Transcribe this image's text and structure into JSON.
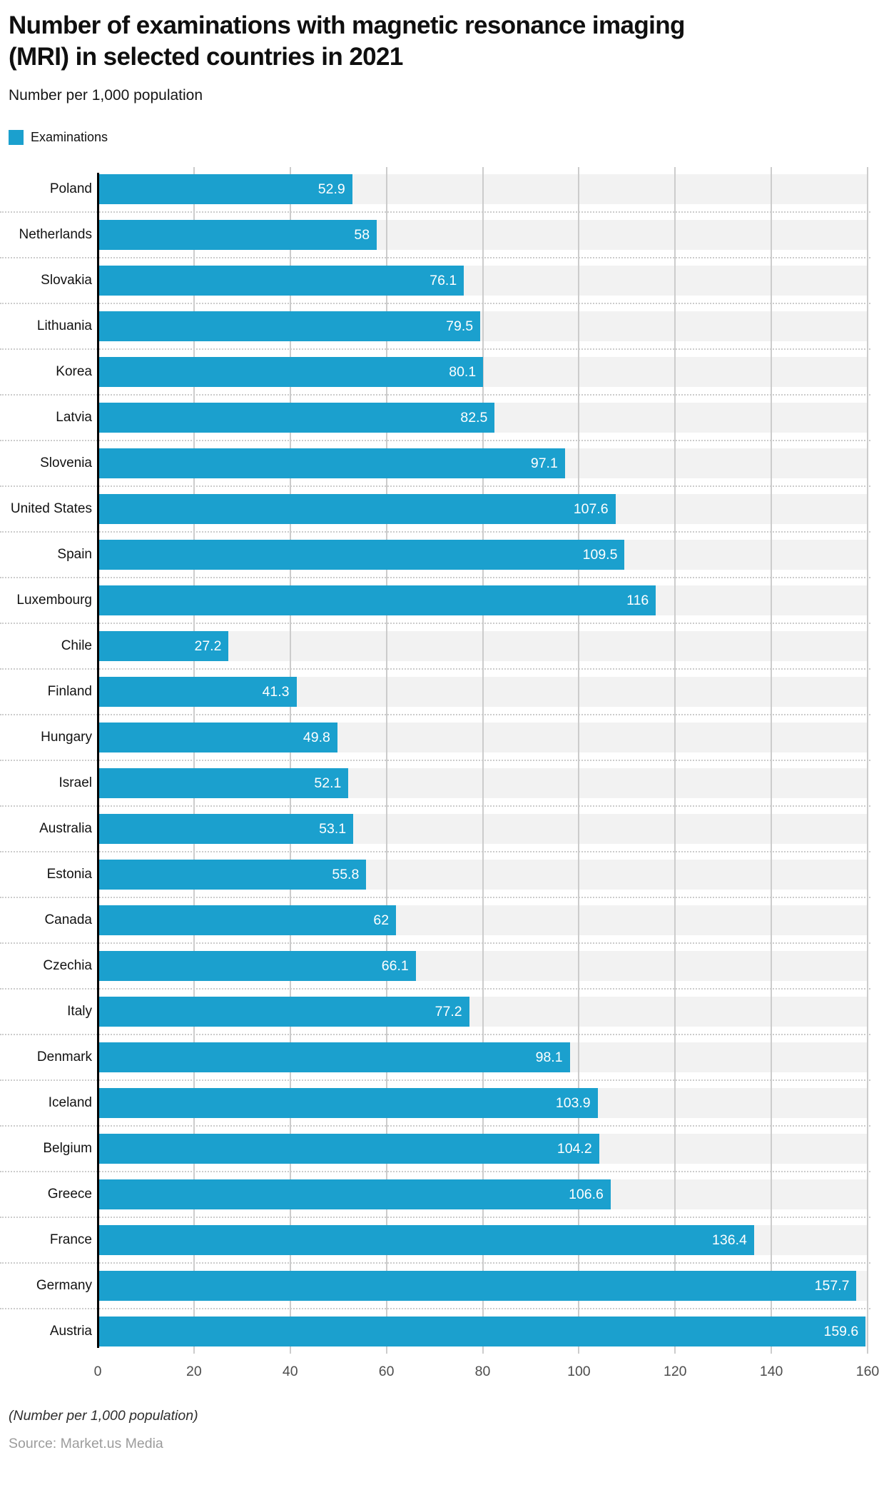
{
  "header": {
    "title": "Number of examinations with magnetic resonance imaging (MRI) in selected countries in 2021",
    "subtitle": "Number per 1,000 population"
  },
  "legend": {
    "label": "Examinations",
    "swatch_color": "#1BA0CE"
  },
  "chart_data": {
    "type": "bar",
    "orientation": "horizontal",
    "title": "Number of examinations with magnetic resonance imaging (MRI) in selected countries in 2021",
    "subtitle": "Number per 1,000 population",
    "legend_entries": [
      "Examinations"
    ],
    "legend_position": "top-left",
    "grid": true,
    "xlabel": "",
    "ylabel": "",
    "xlim": [
      0,
      160
    ],
    "xticks": [
      0,
      20,
      40,
      60,
      80,
      100,
      120,
      140,
      160
    ],
    "bar_color": "#1BA0CE",
    "band_color": "#f2f2f2",
    "gridline_color": "#cccccc",
    "categories": [
      "Poland",
      "Netherlands",
      "Slovakia",
      "Lithuania",
      "Korea",
      "Latvia",
      "Slovenia",
      "United States",
      "Spain",
      "Luxembourg",
      "Chile",
      "Finland",
      "Hungary",
      "Israel",
      "Australia",
      "Estonia",
      "Canada",
      "Czechia",
      "Italy",
      "Denmark",
      "Iceland",
      "Belgium",
      "Greece",
      "France",
      "Germany",
      "Austria"
    ],
    "values": [
      52.9,
      58,
      76.1,
      79.5,
      80.1,
      82.5,
      97.1,
      107.6,
      109.5,
      116,
      27.2,
      41.3,
      49.8,
      52.1,
      53.1,
      55.8,
      62,
      66.1,
      77.2,
      98.1,
      103.9,
      104.2,
      106.6,
      136.4,
      157.7,
      159.6
    ],
    "value_labels": [
      "52.9",
      "58",
      "76.1",
      "79.5",
      "80.1",
      "82.5",
      "97.1",
      "107.6",
      "109.5",
      "116",
      "27.2",
      "41.3",
      "49.8",
      "52.1",
      "53.1",
      "55.8",
      "62",
      "66.1",
      "77.2",
      "98.1",
      "103.9",
      "104.2",
      "106.6",
      "136.4",
      "157.7",
      "159.6"
    ]
  },
  "footer": {
    "note": "(Number per 1,000 population)",
    "source": "Source: Market.us Media"
  }
}
